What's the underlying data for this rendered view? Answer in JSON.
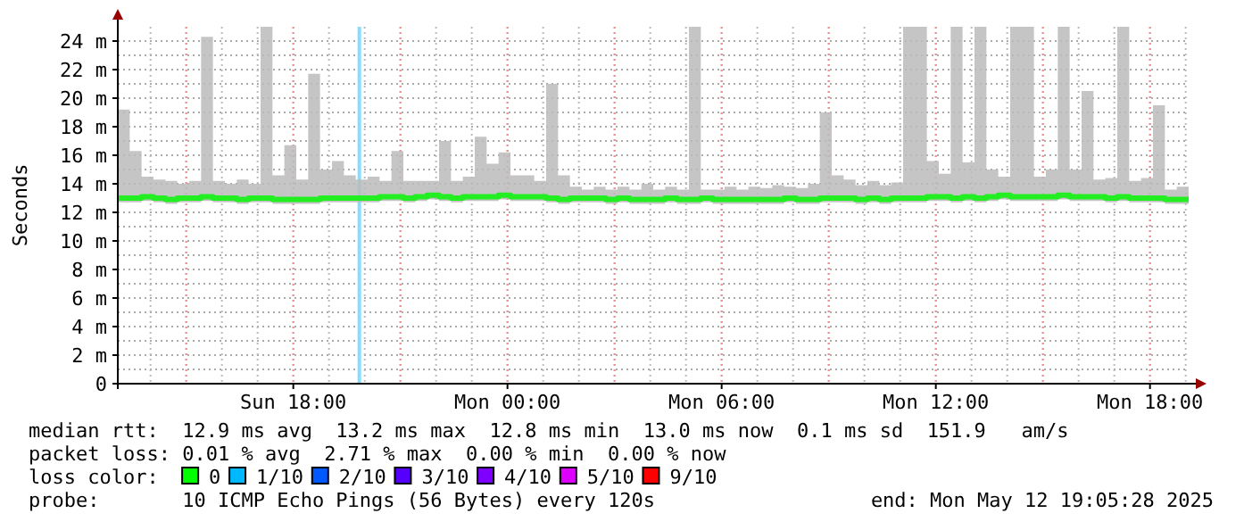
{
  "chart_data": {
    "type": "line",
    "ylabel": "Seconds",
    "x": [
      "2025-05-11T13:05",
      "2025-05-11T13:25",
      "2025-05-11T13:45",
      "2025-05-11T14:05",
      "2025-05-11T14:25",
      "2025-05-11T14:45",
      "2025-05-11T15:05",
      "2025-05-11T15:25",
      "2025-05-11T15:45",
      "2025-05-11T16:05",
      "2025-05-11T16:25",
      "2025-05-11T16:45",
      "2025-05-11T17:05",
      "2025-05-11T17:25",
      "2025-05-11T17:45",
      "2025-05-11T18:05",
      "2025-05-11T18:25",
      "2025-05-11T18:45",
      "2025-05-11T19:05",
      "2025-05-11T19:25",
      "2025-05-11T19:45",
      "2025-05-11T20:05",
      "2025-05-11T20:25",
      "2025-05-11T20:45",
      "2025-05-11T21:05",
      "2025-05-11T21:25",
      "2025-05-11T21:45",
      "2025-05-11T22:05",
      "2025-05-11T22:25",
      "2025-05-11T22:45",
      "2025-05-11T23:05",
      "2025-05-11T23:25",
      "2025-05-11T23:45",
      "2025-05-12T00:05",
      "2025-05-12T00:25",
      "2025-05-12T00:45",
      "2025-05-12T01:05",
      "2025-05-12T01:25",
      "2025-05-12T01:45",
      "2025-05-12T02:05",
      "2025-05-12T02:25",
      "2025-05-12T02:45",
      "2025-05-12T03:05",
      "2025-05-12T03:25",
      "2025-05-12T03:45",
      "2025-05-12T04:05",
      "2025-05-12T04:25",
      "2025-05-12T04:45",
      "2025-05-12T05:05",
      "2025-05-12T05:25",
      "2025-05-12T05:45",
      "2025-05-12T06:05",
      "2025-05-12T06:25",
      "2025-05-12T06:45",
      "2025-05-12T07:05",
      "2025-05-12T07:25",
      "2025-05-12T07:45",
      "2025-05-12T08:05",
      "2025-05-12T08:25",
      "2025-05-12T08:45",
      "2025-05-12T09:05",
      "2025-05-12T09:25",
      "2025-05-12T09:45",
      "2025-05-12T10:05",
      "2025-05-12T10:25",
      "2025-05-12T10:45",
      "2025-05-12T11:05",
      "2025-05-12T11:25",
      "2025-05-12T11:45",
      "2025-05-12T12:05",
      "2025-05-12T12:25",
      "2025-05-12T12:45",
      "2025-05-12T13:05",
      "2025-05-12T13:25",
      "2025-05-12T13:45",
      "2025-05-12T14:05",
      "2025-05-12T14:25",
      "2025-05-12T14:45",
      "2025-05-12T15:05",
      "2025-05-12T15:25",
      "2025-05-12T15:45",
      "2025-05-12T16:05",
      "2025-05-12T16:25",
      "2025-05-12T16:45",
      "2025-05-12T17:05",
      "2025-05-12T17:25",
      "2025-05-12T17:45",
      "2025-05-12T18:05",
      "2025-05-12T18:25",
      "2025-05-12T18:45",
      "2025-05-12T19:05"
    ],
    "series": [
      {
        "color": "#22ee22",
        "values": [
          13,
          13,
          13.1,
          13,
          12.9,
          13,
          13,
          13.1,
          13,
          13,
          12.9,
          13,
          13,
          12.9,
          12.9,
          12.9,
          12.9,
          13,
          13,
          13,
          13,
          13,
          13.1,
          13.1,
          13,
          13.1,
          13.2,
          13.1,
          13,
          13.1,
          13.1,
          13.1,
          13.2,
          13.1,
          13.1,
          13.1,
          13,
          12.9,
          13,
          13,
          13,
          12.9,
          13,
          12.9,
          12.9,
          12.9,
          13,
          12.9,
          12.9,
          13,
          12.9,
          12.9,
          12.9,
          12.9,
          12.9,
          12.9,
          13,
          12.9,
          12.9,
          13,
          13,
          13,
          12.9,
          13,
          12.9,
          13,
          13,
          13,
          13.1,
          13.1,
          13,
          13.1,
          13,
          13.1,
          13.2,
          13.1,
          13.1,
          13.1,
          13.1,
          13.2,
          13.1,
          13.1,
          13.1,
          13,
          13.1,
          13,
          13,
          13,
          12.9,
          12.9,
          13
        ],
        "lower": [
          12.7,
          12.7,
          12.8,
          12.7,
          12.6,
          12.7,
          12.7,
          12.8,
          12.7,
          12.7,
          12.6,
          12.7,
          12.7,
          12.6,
          12.6,
          12.6,
          12.6,
          12.7,
          12.7,
          12.7,
          12.7,
          12.7,
          12.8,
          12.8,
          12.7,
          12.8,
          12.9,
          12.8,
          12.7,
          12.8,
          12.8,
          12.8,
          12.9,
          12.8,
          12.8,
          12.8,
          12.7,
          12.6,
          12.7,
          12.7,
          12.7,
          12.6,
          12.7,
          12.6,
          12.6,
          12.6,
          12.7,
          12.6,
          12.6,
          12.7,
          12.6,
          12.6,
          12.6,
          12.6,
          12.6,
          12.6,
          12.7,
          12.6,
          12.6,
          12.7,
          12.7,
          12.7,
          12.6,
          12.7,
          12.6,
          12.7,
          12.7,
          12.7,
          12.8,
          12.8,
          12.7,
          12.8,
          12.7,
          12.8,
          12.9,
          12.8,
          12.8,
          12.8,
          12.8,
          12.9,
          12.8,
          12.8,
          12.8,
          12.7,
          12.8,
          12.7,
          12.7,
          12.7,
          12.6,
          12.6,
          12.7
        ],
        "upper": [
          19.2,
          16.3,
          14.5,
          14.3,
          14.2,
          14,
          14.2,
          24.3,
          14.2,
          14,
          14.3,
          14,
          25,
          14.6,
          16.7,
          14.3,
          21.7,
          15,
          15.6,
          14.6,
          14.3,
          14.5,
          14.2,
          16.3,
          14.2,
          14.2,
          14.2,
          17,
          14.2,
          14.5,
          17.3,
          15.4,
          16.2,
          14.6,
          14.6,
          14.2,
          21,
          14.6,
          13.8,
          13.6,
          13.8,
          13.6,
          13.8,
          13.6,
          14,
          13.6,
          13.8,
          13.6,
          25,
          13.6,
          13.6,
          13.8,
          13.6,
          13.8,
          13.7,
          13.9,
          13.8,
          13.7,
          14,
          19,
          14.6,
          14.3,
          13.9,
          14.2,
          13.9,
          14.1,
          25,
          25,
          15.6,
          14.7,
          25,
          15.5,
          25,
          15,
          14.5,
          25,
          25,
          14.5,
          15,
          25,
          15,
          20.5,
          14.3,
          14.4,
          25,
          14.2,
          14.4,
          19.5,
          13.6,
          13.8,
          21.5
        ]
      }
    ],
    "xlim": [
      "2025-05-11T13:05",
      "2025-05-12T19:05"
    ],
    "xticks": [
      {
        "value": "2025-05-11T18:00",
        "label": "Sun 18:00"
      },
      {
        "value": "2025-05-12T00:00",
        "label": "Mon 00:00"
      },
      {
        "value": "2025-05-12T06:00",
        "label": "Mon 06:00"
      },
      {
        "value": "2025-05-12T12:00",
        "label": "Mon 12:00"
      },
      {
        "value": "2025-05-12T18:00",
        "label": "Mon 18:00"
      }
    ],
    "ylim": [
      0,
      25
    ],
    "yticks": [
      0,
      {
        "value": 2,
        "label": "2 m"
      },
      {
        "value": 4,
        "label": "4 m"
      },
      {
        "value": 6,
        "label": "6 m"
      },
      {
        "value": 8,
        "label": "8 m"
      },
      {
        "value": 10,
        "label": "10 m"
      },
      {
        "value": 12,
        "label": "12 m"
      },
      {
        "value": 14,
        "label": "14 m"
      },
      {
        "value": 16,
        "label": "16 m"
      },
      {
        "value": 18,
        "label": "18 m"
      },
      {
        "value": 20,
        "label": "20 m"
      },
      {
        "value": 22,
        "label": "22 m"
      },
      {
        "value": 24,
        "label": "24 m"
      }
    ],
    "grid": true,
    "ref_lines": [
      {
        "axis": "x",
        "value": "2025-05-11T19:51",
        "color": "#88ddff"
      }
    ],
    "annotations": [
      "median rtt:  12.9 ms avg  13.2 ms max  12.8 ms min  13.0 ms now  0.1 ms sd  151.9   am/s",
      "packet loss: 0.01 % avg  2.71 % max  0.00 % min  0.00 % now",
      "loss color:",
      "0",
      "1/10",
      "2/10",
      "3/10",
      "4/10",
      "5/10",
      "9/10",
      "probe:       10 ICMP Echo Pings (56 Bytes) every 120s",
      "end: Mon May 12 19:05:28 2025"
    ]
  }
}
